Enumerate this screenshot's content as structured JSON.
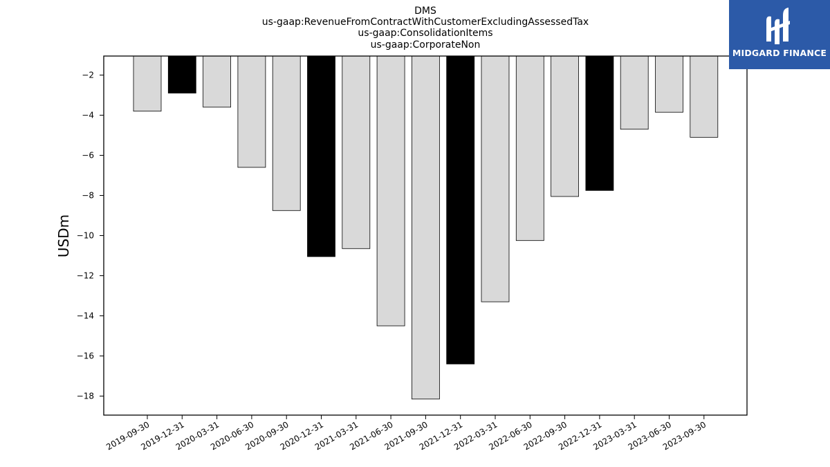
{
  "chart_data": {
    "type": "bar",
    "title_lines": [
      "DMS",
      "us-gaap:RevenueFromContractWithCustomerExcludingAssessedTax",
      "us-gaap:ConsolidationItems",
      "us-gaap:CorporateNon"
    ],
    "ylabel": "USDm",
    "xlabel": "",
    "categories": [
      "2019-09-30",
      "2019-12-31",
      "2020-03-31",
      "2020-06-30",
      "2020-09-30",
      "2020-12-31",
      "2021-03-31",
      "2021-06-30",
      "2021-09-30",
      "2021-12-31",
      "2022-03-31",
      "2022-06-30",
      "2022-09-30",
      "2022-12-31",
      "2023-03-31",
      "2023-06-30",
      "2023-09-30"
    ],
    "values": [
      -3.8,
      -2.9,
      -3.6,
      -6.6,
      -8.75,
      -11.05,
      -10.65,
      -14.5,
      -18.15,
      -16.4,
      -13.3,
      -10.25,
      -8.05,
      -7.75,
      -4.7,
      -3.85,
      -5.1
    ],
    "highlighted": [
      false,
      true,
      false,
      false,
      false,
      true,
      false,
      false,
      false,
      true,
      false,
      false,
      false,
      true,
      false,
      false,
      false
    ],
    "ylim": [
      -18.95,
      -1.05
    ],
    "yticks": [
      -2,
      -4,
      -6,
      -8,
      -10,
      -12,
      -14,
      -16,
      -18
    ],
    "colors": {
      "bar": "#d9d9d9",
      "highlight": "#000000",
      "edge": "#000000"
    },
    "grid": false,
    "legend": "none"
  },
  "logo": {
    "text": "MIDGARD FINANCE",
    "background": "#2c5aa8"
  }
}
